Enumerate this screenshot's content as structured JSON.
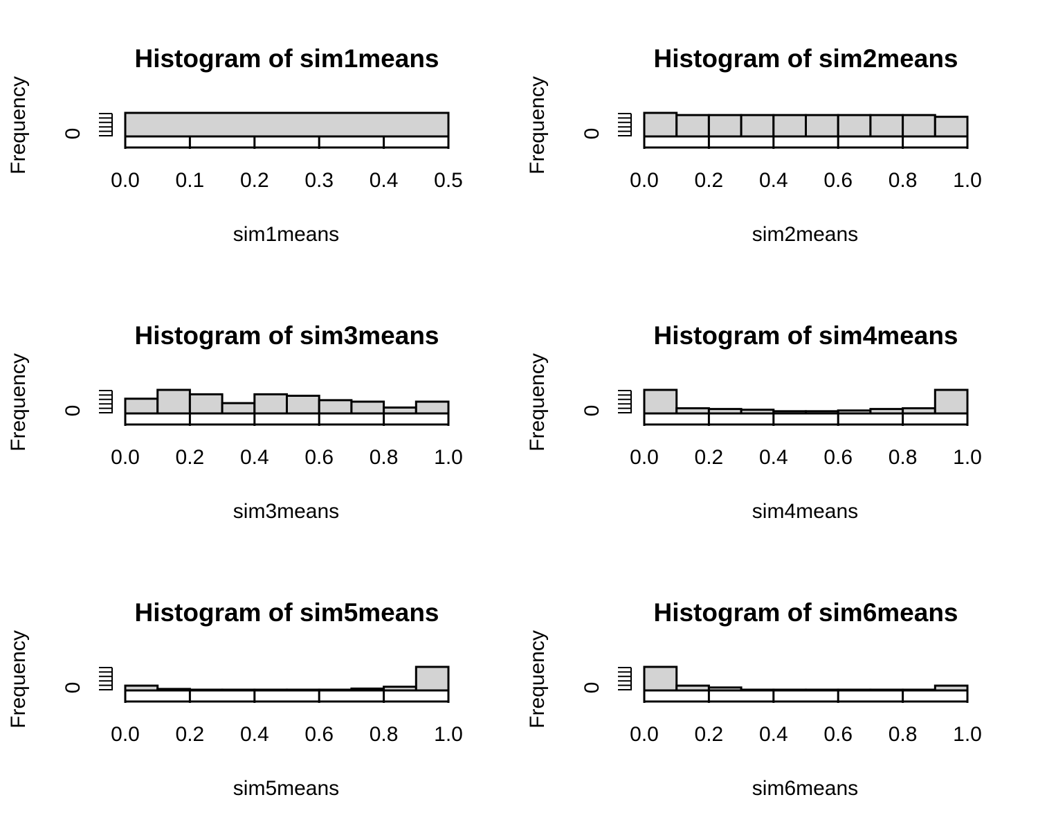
{
  "figure": {
    "layout": "3x2 grid of histograms"
  },
  "colors": {
    "bar_fill": "#d3d3d3",
    "stroke": "#000000",
    "background": "#ffffff"
  },
  "chart_data": [
    {
      "type": "bar",
      "title": "Histogram of sim1means",
      "xlabel": "sim1means",
      "ylabel": "Frequency",
      "xlim": [
        0,
        0.5
      ],
      "ylim": [
        0,
        1000
      ],
      "x_ticks": [
        "0.0",
        "0.1",
        "0.2",
        "0.3",
        "0.4",
        "0.5"
      ],
      "y_ticks": [
        "0"
      ],
      "bin_edges": [
        0,
        0.5
      ],
      "values": [
        1000
      ],
      "grid": false
    },
    {
      "type": "bar",
      "title": "Histogram of sim2means",
      "xlabel": "sim2means",
      "ylabel": "Frequency",
      "xlim": [
        0,
        1.0
      ],
      "ylim": [
        0,
        108
      ],
      "x_ticks": [
        "0.0",
        "0.2",
        "0.4",
        "0.6",
        "0.8",
        "1.0"
      ],
      "y_ticks": [
        "0"
      ],
      "bin_edges": [
        0,
        0.1,
        0.2,
        0.3,
        0.4,
        0.5,
        0.6,
        0.7,
        0.8,
        0.9,
        1.0
      ],
      "values": [
        108,
        98,
        98,
        98,
        98,
        98,
        98,
        98,
        98,
        90
      ],
      "grid": false
    },
    {
      "type": "bar",
      "title": "Histogram of sim3means",
      "xlabel": "sim3means",
      "ylabel": "Frequency",
      "xlim": [
        0,
        1.0
      ],
      "ylim": [
        0,
        160
      ],
      "x_ticks": [
        "0.0",
        "0.2",
        "0.4",
        "0.6",
        "0.8",
        "1.0"
      ],
      "y_ticks": [
        "0"
      ],
      "bin_edges": [
        0,
        0.1,
        0.2,
        0.3,
        0.4,
        0.5,
        0.6,
        0.7,
        0.8,
        0.9,
        1.0
      ],
      "values": [
        100,
        160,
        130,
        70,
        130,
        120,
        90,
        80,
        40,
        80
      ],
      "grid": false
    },
    {
      "type": "bar",
      "title": "Histogram of sim4means",
      "xlabel": "sim4means",
      "ylabel": "Frequency",
      "xlim": [
        0,
        1.0
      ],
      "ylim": [
        0,
        320
      ],
      "x_ticks": [
        "0.0",
        "0.2",
        "0.4",
        "0.6",
        "0.8",
        "1.0"
      ],
      "y_ticks": [
        "0"
      ],
      "bin_edges": [
        0,
        0.1,
        0.2,
        0.3,
        0.4,
        0.5,
        0.6,
        0.7,
        0.8,
        0.9,
        1.0
      ],
      "values": [
        320,
        70,
        60,
        50,
        30,
        30,
        40,
        60,
        70,
        320
      ],
      "grid": false
    },
    {
      "type": "bar",
      "title": "Histogram of sim5means",
      "xlabel": "sim5means",
      "ylabel": "Frequency",
      "xlim": [
        0,
        1.0
      ],
      "ylim": [
        0,
        640
      ],
      "x_ticks": [
        "0.0",
        "0.2",
        "0.4",
        "0.6",
        "0.8",
        "1.0"
      ],
      "y_ticks": [
        "0"
      ],
      "bin_edges": [
        0,
        0.1,
        0.2,
        0.3,
        0.4,
        0.5,
        0.6,
        0.7,
        0.8,
        0.9,
        1.0
      ],
      "values": [
        130,
        40,
        20,
        20,
        20,
        20,
        20,
        50,
        100,
        640
      ],
      "grid": false
    },
    {
      "type": "bar",
      "title": "Histogram of sim6means",
      "xlabel": "sim6means",
      "ylabel": "Frequency",
      "xlim": [
        0,
        1.0
      ],
      "ylim": [
        0,
        640
      ],
      "x_ticks": [
        "0.0",
        "0.2",
        "0.4",
        "0.6",
        "0.8",
        "1.0"
      ],
      "y_ticks": [
        "0"
      ],
      "bin_edges": [
        0,
        0.1,
        0.2,
        0.3,
        0.4,
        0.5,
        0.6,
        0.7,
        0.8,
        0.9,
        1.0
      ],
      "values": [
        640,
        130,
        80,
        20,
        20,
        20,
        20,
        20,
        20,
        130
      ],
      "grid": false
    }
  ]
}
